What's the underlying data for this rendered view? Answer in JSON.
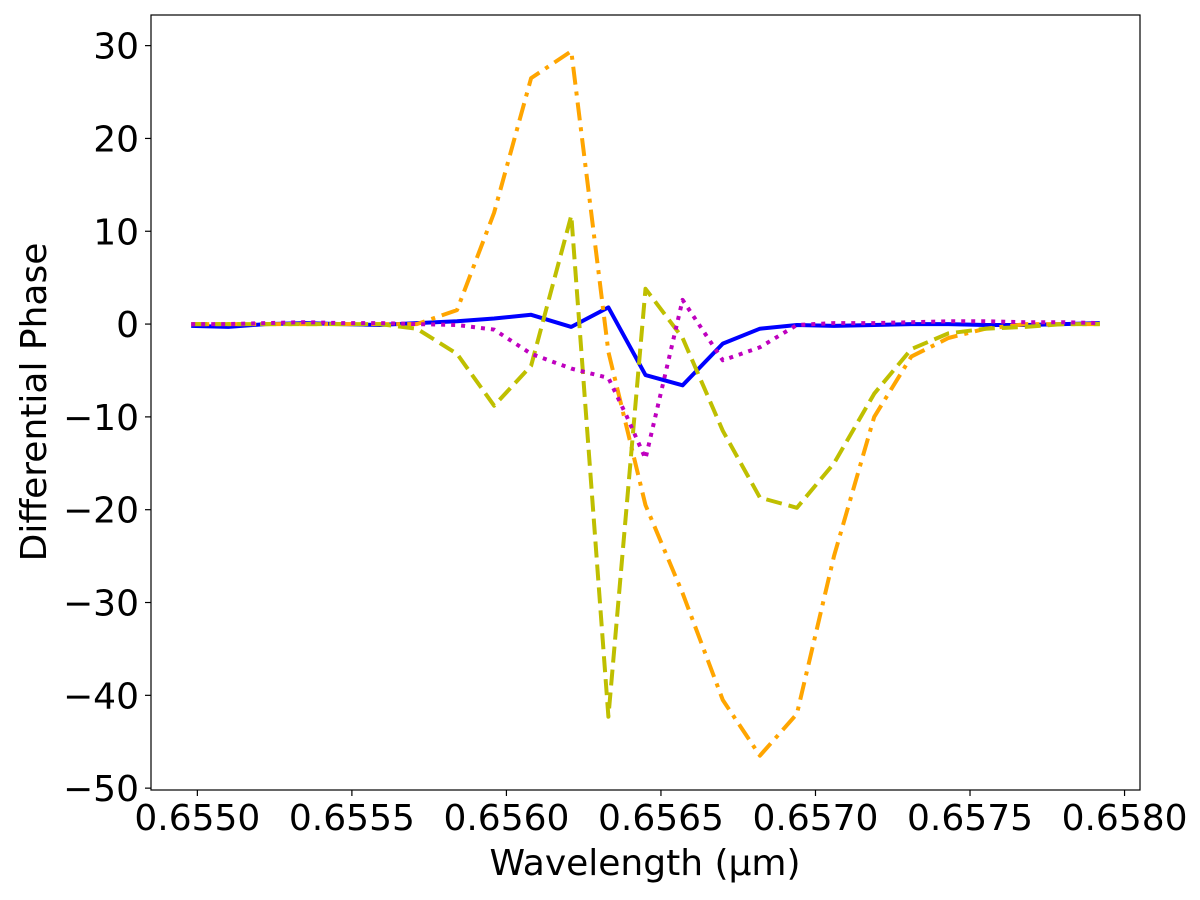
{
  "chart_data": {
    "type": "line",
    "title": "",
    "xlabel": "Wavelength (μm)",
    "ylabel": "Differential Phase",
    "xlim": [
      0.65485,
      0.65805
    ],
    "ylim": [
      -50.2,
      33.3
    ],
    "x_ticks": [
      0.655,
      0.6555,
      0.656,
      0.6565,
      0.657,
      0.6575,
      0.658
    ],
    "x_tick_labels": [
      "0.6550",
      "0.6555",
      "0.6560",
      "0.6565",
      "0.6570",
      "0.6575",
      "0.6580"
    ],
    "y_ticks": [
      -50,
      -40,
      -30,
      -20,
      -10,
      0,
      10,
      20,
      30
    ],
    "y_tick_labels": [
      "−50",
      "−40",
      "−30",
      "−20",
      "−10",
      "0",
      "10",
      "20",
      "30"
    ],
    "grid": false,
    "series": [
      {
        "color": "#0000ff",
        "dash": "solid",
        "x": [
          0.65498,
          0.6551,
          0.65522,
          0.65535,
          0.65547,
          0.65559,
          0.65571,
          0.65584,
          0.65596,
          0.65608,
          0.65621,
          0.65633,
          0.65645,
          0.65657,
          0.6567,
          0.65682,
          0.65694,
          0.65706,
          0.65719,
          0.65731,
          0.65743,
          0.65755,
          0.65768,
          0.6578,
          0.65792
        ],
        "y": [
          -0.2,
          -0.3,
          0.0,
          0.1,
          0.0,
          -0.1,
          0.1,
          0.3,
          0.6,
          1.0,
          -0.3,
          1.8,
          -5.5,
          -6.6,
          -2.1,
          -0.5,
          -0.1,
          -0.2,
          -0.1,
          0.0,
          0.0,
          -0.1,
          -0.1,
          0.0,
          0.1
        ]
      },
      {
        "color": "#ffa500",
        "dash": "dashdot",
        "x": [
          0.65498,
          0.6551,
          0.65522,
          0.65535,
          0.65547,
          0.65559,
          0.65571,
          0.65584,
          0.65596,
          0.65608,
          0.65621,
          0.65633,
          0.65645,
          0.65657,
          0.6567,
          0.65682,
          0.65694,
          0.65706,
          0.65719,
          0.65731,
          0.65743,
          0.65755,
          0.65768,
          0.6578,
          0.65792
        ],
        "y": [
          0.0,
          0.0,
          0.0,
          0.0,
          0.0,
          0.0,
          0.0,
          1.5,
          12.0,
          26.5,
          29.4,
          -3.0,
          -19.5,
          -29.0,
          -40.5,
          -46.5,
          -42.0,
          -25.0,
          -10.0,
          -3.5,
          -1.5,
          -0.5,
          0.0,
          0.0,
          0.0
        ]
      },
      {
        "color": "#bfbf00",
        "dash": "dashed",
        "x": [
          0.65498,
          0.6551,
          0.65522,
          0.65535,
          0.65547,
          0.65559,
          0.65571,
          0.65584,
          0.65596,
          0.65608,
          0.65621,
          0.65633,
          0.65645,
          0.65657,
          0.6567,
          0.65682,
          0.65694,
          0.65706,
          0.65719,
          0.65731,
          0.65743,
          0.65755,
          0.65768,
          0.6578,
          0.65792
        ],
        "y": [
          0.0,
          0.0,
          0.0,
          0.0,
          0.0,
          0.0,
          -0.5,
          -3.2,
          -8.8,
          -4.5,
          11.7,
          -42.3,
          3.8,
          -1.5,
          -11.5,
          -18.7,
          -19.8,
          -15.0,
          -7.5,
          -2.7,
          -1.0,
          -0.5,
          -0.3,
          0.0,
          0.0
        ]
      },
      {
        "color": "#bf00bf",
        "dash": "dotted",
        "x": [
          0.65498,
          0.6551,
          0.65522,
          0.65535,
          0.65547,
          0.65559,
          0.65571,
          0.65584,
          0.65596,
          0.65608,
          0.65621,
          0.65633,
          0.65639,
          0.65645,
          0.65657,
          0.6567,
          0.65682,
          0.65694,
          0.65706,
          0.65719,
          0.65731,
          0.65743,
          0.65755,
          0.65768,
          0.6578,
          0.65792
        ],
        "y": [
          0.0,
          0.0,
          0.1,
          0.2,
          0.1,
          0.1,
          0.0,
          -0.1,
          -0.6,
          -3.2,
          -4.8,
          -5.8,
          -10.0,
          -14.5,
          2.6,
          -3.9,
          -2.5,
          -0.1,
          0.1,
          0.1,
          0.2,
          0.3,
          0.3,
          0.2,
          0.2,
          0.1
        ]
      }
    ]
  }
}
